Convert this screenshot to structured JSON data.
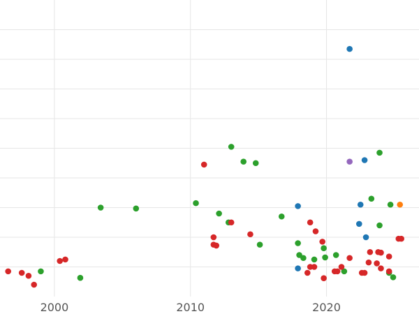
{
  "chart_data": {
    "type": "scatter",
    "title": "",
    "xlabel": "",
    "ylabel": "",
    "xlim": [
      1996,
      2026.8
    ],
    "ylim": [
      0,
      10
    ],
    "x_ticks": [
      2000,
      2010,
      2020
    ],
    "x_tick_labels": [
      "2000",
      "2010",
      "2020"
    ],
    "y_grid_values": [
      1,
      2,
      3,
      4,
      5,
      6,
      7,
      8,
      9
    ],
    "y_tick_labels": [],
    "grid": true,
    "legend": "none",
    "series": [
      {
        "color": "#1f77b4",
        "points": [
          {
            "x": 2021.7,
            "y": 8.35
          },
          {
            "x": 2022.8,
            "y": 4.6
          },
          {
            "x": 2022.5,
            "y": 3.1
          },
          {
            "x": 2017.9,
            "y": 3.05
          },
          {
            "x": 2022.4,
            "y": 2.45
          },
          {
            "x": 2022.9,
            "y": 2.0
          },
          {
            "x": 2017.9,
            "y": 0.95
          }
        ]
      },
      {
        "color": "#2ca02c",
        "points": [
          {
            "x": 2013.0,
            "y": 5.05
          },
          {
            "x": 2023.9,
            "y": 4.85
          },
          {
            "x": 2013.9,
            "y": 4.55
          },
          {
            "x": 2014.8,
            "y": 4.5
          },
          {
            "x": 2023.3,
            "y": 3.3
          },
          {
            "x": 2010.4,
            "y": 3.15
          },
          {
            "x": 2024.7,
            "y": 3.1
          },
          {
            "x": 2003.4,
            "y": 3.0
          },
          {
            "x": 2006.0,
            "y": 2.97
          },
          {
            "x": 2012.1,
            "y": 2.8
          },
          {
            "x": 2016.7,
            "y": 2.7
          },
          {
            "x": 2012.8,
            "y": 2.5
          },
          {
            "x": 2023.9,
            "y": 2.4
          },
          {
            "x": 2017.9,
            "y": 1.8
          },
          {
            "x": 2015.1,
            "y": 1.75
          },
          {
            "x": 2019.8,
            "y": 1.63
          },
          {
            "x": 2018.0,
            "y": 1.4
          },
          {
            "x": 2018.3,
            "y": 1.3
          },
          {
            "x": 2019.9,
            "y": 1.32
          },
          {
            "x": 2020.7,
            "y": 1.4
          },
          {
            "x": 2019.1,
            "y": 1.25
          },
          {
            "x": 1999.0,
            "y": 0.85
          },
          {
            "x": 2021.3,
            "y": 0.85
          },
          {
            "x": 2024.6,
            "y": 0.8
          },
          {
            "x": 2001.9,
            "y": 0.63
          },
          {
            "x": 2024.9,
            "y": 0.65
          }
        ]
      },
      {
        "color": "#d62728",
        "points": [
          {
            "x": 2011.0,
            "y": 4.45
          },
          {
            "x": 2013.0,
            "y": 2.5
          },
          {
            "x": 2018.8,
            "y": 2.5
          },
          {
            "x": 2011.7,
            "y": 2.0
          },
          {
            "x": 2014.4,
            "y": 2.1
          },
          {
            "x": 2019.2,
            "y": 2.2
          },
          {
            "x": 2025.3,
            "y": 1.95
          },
          {
            "x": 2025.5,
            "y": 1.95
          },
          {
            "x": 2011.7,
            "y": 1.75
          },
          {
            "x": 2011.9,
            "y": 1.72
          },
          {
            "x": 2019.7,
            "y": 1.85
          },
          {
            "x": 2023.2,
            "y": 1.5
          },
          {
            "x": 2023.8,
            "y": 1.5
          },
          {
            "x": 2024.0,
            "y": 1.48
          },
          {
            "x": 2024.6,
            "y": 1.35
          },
          {
            "x": 2021.7,
            "y": 1.3
          },
          {
            "x": 2000.4,
            "y": 1.2
          },
          {
            "x": 2000.8,
            "y": 1.25
          },
          {
            "x": 2023.1,
            "y": 1.15
          },
          {
            "x": 2023.7,
            "y": 1.12
          },
          {
            "x": 2018.8,
            "y": 1.0
          },
          {
            "x": 2019.1,
            "y": 1.0
          },
          {
            "x": 2021.1,
            "y": 1.0
          },
          {
            "x": 2024.0,
            "y": 0.95
          },
          {
            "x": 2020.6,
            "y": 0.85
          },
          {
            "x": 2020.8,
            "y": 0.85
          },
          {
            "x": 2022.6,
            "y": 0.8
          },
          {
            "x": 2022.8,
            "y": 0.8
          },
          {
            "x": 2024.6,
            "y": 0.85
          },
          {
            "x": 1996.6,
            "y": 0.85
          },
          {
            "x": 1997.6,
            "y": 0.8
          },
          {
            "x": 2018.6,
            "y": 0.8
          },
          {
            "x": 1998.1,
            "y": 0.7
          },
          {
            "x": 2019.8,
            "y": 0.62
          },
          {
            "x": 1998.5,
            "y": 0.4
          }
        ]
      },
      {
        "color": "#9467bd",
        "points": [
          {
            "x": 2021.7,
            "y": 4.55
          }
        ]
      },
      {
        "color": "#ff7f0e",
        "points": [
          {
            "x": 2025.4,
            "y": 3.1
          }
        ]
      }
    ]
  }
}
